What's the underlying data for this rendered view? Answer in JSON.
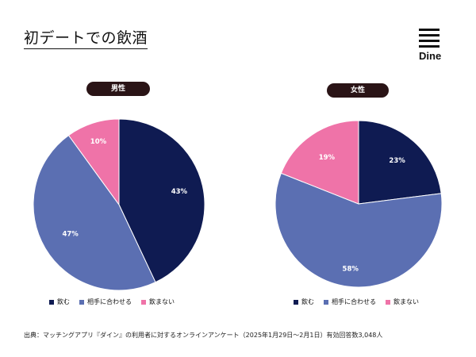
{
  "header": {
    "title": "初デートでの飲酒",
    "logo_text": "Dine",
    "logo_icon": "hamburger-lines-icon"
  },
  "colors": {
    "drink": "#0f1b52",
    "match": "#5b6fb2",
    "no_drink": "#ef73a8",
    "pill_bg": "#2a1416"
  },
  "chart_data": [
    {
      "type": "pie",
      "title": "男性",
      "categories": [
        "飲む",
        "相手に合わせる",
        "飲まない"
      ],
      "values": [
        43,
        47,
        10
      ],
      "labels": [
        "43%",
        "47%",
        "10%"
      ],
      "legend": [
        "飲む",
        "相手に合わせる",
        "飲まない"
      ],
      "legend_position": "bottom"
    },
    {
      "type": "pie",
      "title": "女性",
      "categories": [
        "飲む",
        "相手に合わせる",
        "飲まない"
      ],
      "values": [
        23,
        58,
        19
      ],
      "labels": [
        "23%",
        "58%",
        "19%"
      ],
      "legend": [
        "飲む",
        "相手に合わせる",
        "飲まない"
      ],
      "legend_position": "bottom"
    }
  ],
  "footer": {
    "source": "出典：マッチングアプリ『ダイン』の利用者に対するオンラインアンケート（2025年1月29日〜2月1日）有効回答数3,048人"
  }
}
